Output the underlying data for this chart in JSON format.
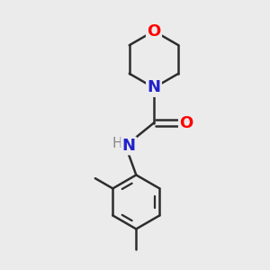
{
  "background_color": "#ebebeb",
  "bond_color": "#2d2d2d",
  "bond_width": 1.8,
  "atom_colors": {
    "O": "#ff0000",
    "N": "#2222cc",
    "H": "#888888"
  },
  "figsize": [
    3.0,
    3.0
  ],
  "dpi": 100,
  "xlim": [
    0,
    10
  ],
  "ylim": [
    0,
    10
  ]
}
